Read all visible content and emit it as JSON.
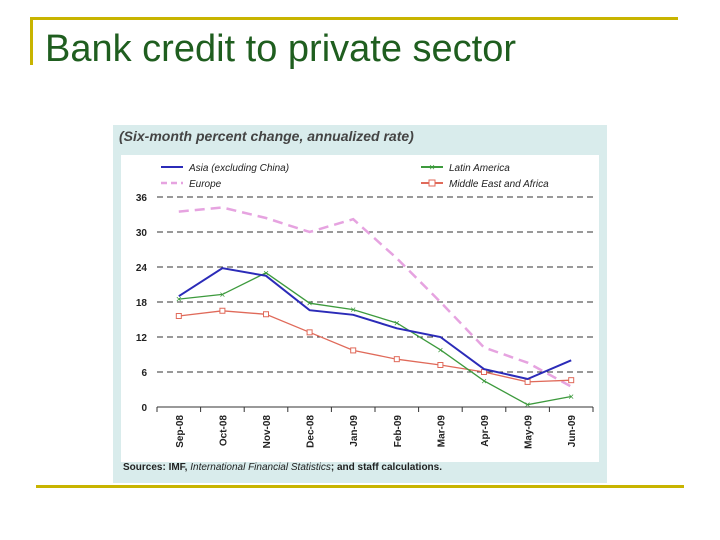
{
  "slide": {
    "title": "Bank credit to private sector"
  },
  "chart_data": {
    "type": "line",
    "title": "",
    "subtitle": "(Six-month percent change, annualized rate)",
    "xlabel": "",
    "ylabel": "",
    "categories": [
      "Sep-08",
      "Oct-08",
      "Nov-08",
      "Dec-08",
      "Jan-09",
      "Feb-09",
      "Mar-09",
      "Apr-09",
      "May-09",
      "Jun-09"
    ],
    "yticks": [
      "0",
      "6",
      "12",
      "18",
      "24",
      "30",
      "36"
    ],
    "ylim": [
      0,
      36
    ],
    "grid": "horizontal-dashed",
    "legend_position": "top",
    "series": [
      {
        "name": "Asia (excluding China)",
        "color": "#2b2bb8",
        "style": "solid",
        "marker": "none",
        "values": [
          19,
          23.8,
          22.5,
          16.6,
          15.8,
          13.5,
          12,
          6.5,
          4.8,
          8
        ]
      },
      {
        "name": "Latin America",
        "color": "#3d9a3d",
        "style": "solid",
        "marker": "x",
        "values": [
          18.5,
          19.3,
          23,
          17.8,
          16.7,
          14.4,
          9.8,
          4.5,
          0.4,
          1.8
        ]
      },
      {
        "name": "Europe",
        "color": "#e6a3e0",
        "style": "dashed",
        "marker": "none",
        "values": [
          33.5,
          34.2,
          32.4,
          30,
          32.2,
          25.5,
          18,
          10.2,
          7.6,
          3.5
        ]
      },
      {
        "name": "Middle East and Africa",
        "color": "#e06a5a",
        "style": "solid",
        "marker": "square",
        "values": [
          15.6,
          16.5,
          15.9,
          12.8,
          9.7,
          8.2,
          7.2,
          6,
          4.3,
          4.6
        ]
      }
    ],
    "source_prefix": "Sources: IMF, ",
    "source_italic": "International Financial Statistics",
    "source_suffix": "; and staff calculations."
  }
}
